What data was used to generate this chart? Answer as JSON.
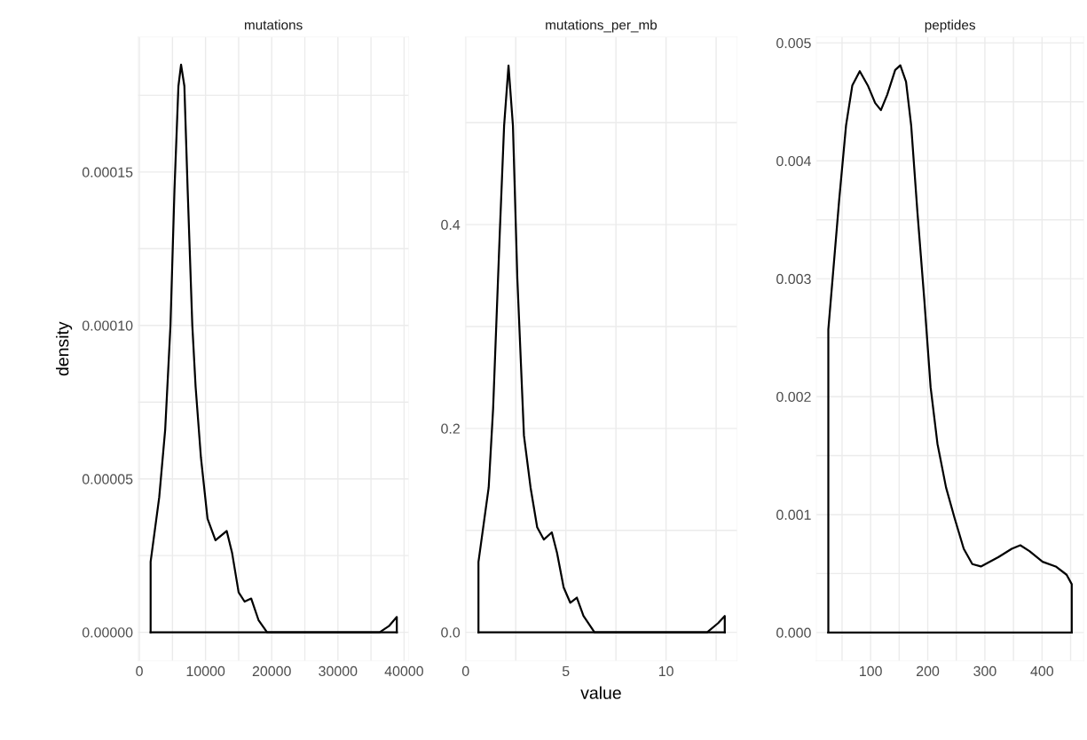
{
  "chart_data": [
    {
      "type": "line",
      "title": "mutations",
      "ylabel": "density",
      "grid": true,
      "xlim": [
        -200,
        40700
      ],
      "ylim": [
        -9.3e-06,
        0.000194
      ],
      "xticks": [
        0,
        {
          "value": 5000,
          "label": null
        },
        10000,
        {
          "value": 15000,
          "label": null
        },
        20000,
        {
          "value": 25000,
          "label": null
        },
        30000,
        {
          "value": 35000,
          "label": null
        },
        40000
      ],
      "yticks": [
        {
          "value": 0,
          "label": "0.00000"
        },
        {
          "value": 2.5e-05,
          "label": null
        },
        {
          "value": 5e-05,
          "label": "0.00005"
        },
        {
          "value": 7.5e-05,
          "label": null
        },
        {
          "value": 0.0001,
          "label": "0.00010"
        },
        {
          "value": 0.000125,
          "label": null
        },
        {
          "value": 0.00015,
          "label": "0.00015"
        },
        {
          "value": 0.000175,
          "label": null
        }
      ],
      "series": [
        {
          "color": "#000000",
          "x": [
            1700,
            1700,
            3000,
            3900,
            4700,
            5300,
            5900,
            6300,
            6800,
            7300,
            8000,
            8500,
            9300,
            10300,
            11500,
            13200,
            14000,
            15000,
            15900,
            16900,
            18000,
            19300,
            36300,
            37700,
            38900,
            38900
          ],
          "values": [
            0,
            2.3e-05,
            4.4e-05,
            6.6e-05,
            0.0001,
            0.000144,
            0.000178,
            0.000185,
            0.000178,
            0.000144,
            0.0001,
            8e-05,
            5.7e-05,
            3.7e-05,
            3e-05,
            3.3e-05,
            2.6e-05,
            1.3e-05,
            1e-05,
            1.1e-05,
            4e-06,
            0,
            0,
            2e-06,
            5e-06,
            0
          ]
        },
        {
          "color": "#000000",
          "x": [
            1700,
            38900
          ],
          "values": [
            0,
            0
          ]
        }
      ]
    },
    {
      "type": "line",
      "title": "mutations_per_mb",
      "xlabel": "value",
      "grid": true,
      "xlim": [
        -0.02,
        13.54
      ],
      "ylim": [
        -0.028,
        0.584
      ],
      "xticks": [
        0,
        {
          "value": 2.5,
          "label": null
        },
        5,
        {
          "value": 7.5,
          "label": null
        },
        10,
        {
          "value": 12.5,
          "label": null
        }
      ],
      "yticks": [
        {
          "value": 0,
          "label": "0.0"
        },
        {
          "value": 0.1,
          "label": null
        },
        0.2,
        {
          "value": 0.3,
          "label": null
        },
        0.4,
        {
          "value": 0.5,
          "label": null
        }
      ],
      "series": [
        {
          "color": "#000000",
          "x": [
            0.64,
            0.64,
            1.15,
            1.37,
            1.7,
            1.92,
            2.14,
            2.36,
            2.58,
            2.91,
            3.24,
            3.57,
            3.9,
            4.3,
            4.56,
            4.89,
            5.22,
            5.55,
            5.88,
            6.43,
            12.05,
            12.6,
            12.93,
            12.93
          ],
          "values": [
            0,
            0.069,
            0.142,
            0.219,
            0.39,
            0.497,
            0.556,
            0.497,
            0.347,
            0.193,
            0.142,
            0.103,
            0.091,
            0.098,
            0.078,
            0.044,
            0.029,
            0.034,
            0.016,
            0,
            0,
            0.009,
            0.016,
            0
          ]
        },
        {
          "color": "#000000",
          "x": [
            0.64,
            12.93
          ],
          "values": [
            0,
            0
          ]
        }
      ]
    },
    {
      "type": "line",
      "title": "peptides",
      "grid": true,
      "xlim": [
        5,
        473
      ],
      "ylim": [
        -0.00024,
        0.00505
      ],
      "xticks": [
        {
          "value": 50,
          "label": null
        },
        100,
        {
          "value": 150,
          "label": null
        },
        200,
        {
          "value": 250,
          "label": null
        },
        300,
        {
          "value": 350,
          "label": null
        },
        400,
        {
          "value": 450,
          "label": null
        }
      ],
      "yticks": [
        {
          "value": 0,
          "label": "0.000"
        },
        {
          "value": 0.0005,
          "label": null
        },
        0.001,
        {
          "value": 0.0015,
          "label": null
        },
        0.002,
        {
          "value": 0.0025,
          "label": null
        },
        0.003,
        {
          "value": 0.0035,
          "label": null
        },
        0.004,
        {
          "value": 0.0045,
          "label": null
        },
        0.005
      ],
      "series": [
        {
          "color": "#000000",
          "x": [
            26,
            26,
            33.6,
            45,
            57,
            68,
            81,
            95,
            108,
            118,
            129,
            143,
            152,
            162,
            171,
            182,
            194,
            205,
            217,
            232,
            247,
            263,
            278,
            293,
            324,
            347,
            362,
            378,
            401,
            424,
            443,
            452,
            452
          ],
          "values": [
            0,
            0.00257,
            0.00301,
            0.00367,
            0.0043,
            0.00464,
            0.00476,
            0.00464,
            0.00449,
            0.00443,
            0.00456,
            0.00477,
            0.00481,
            0.00467,
            0.0043,
            0.00356,
            0.00282,
            0.00208,
            0.0016,
            0.00123,
            0.00097,
            0.00071,
            0.00058,
            0.00056,
            0.00064,
            0.00071,
            0.00074,
            0.00069,
            0.0006,
            0.00056,
            0.00049,
            0.00041,
            0
          ]
        },
        {
          "color": "#000000",
          "x": [
            26,
            452
          ],
          "values": [
            0,
            0
          ]
        }
      ]
    }
  ]
}
